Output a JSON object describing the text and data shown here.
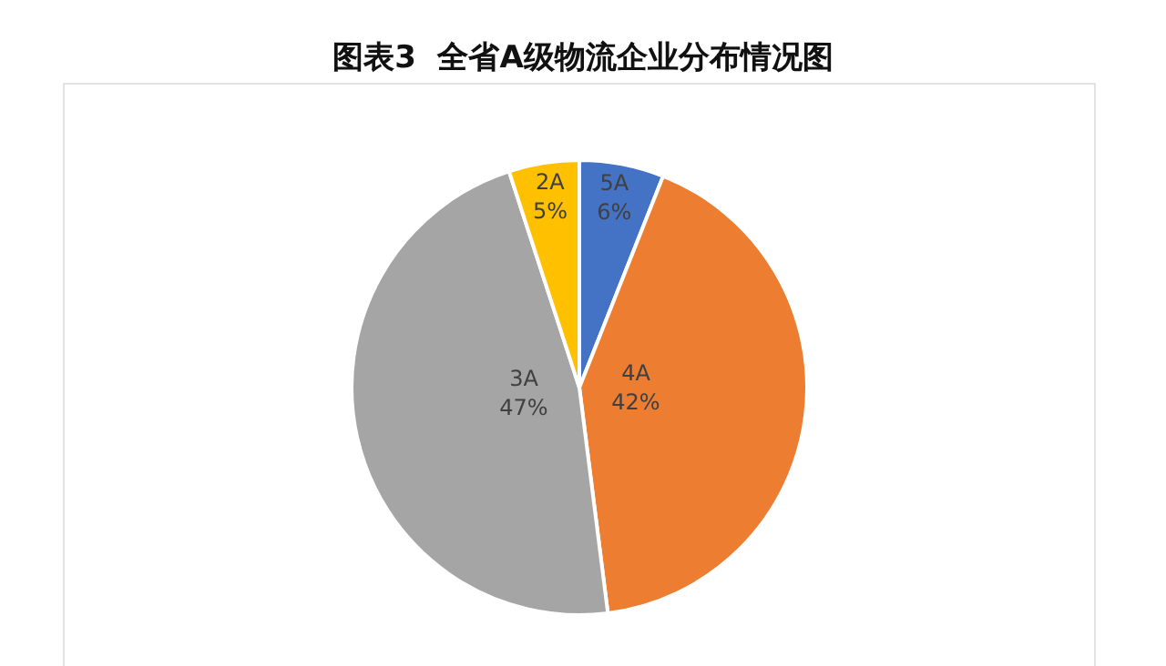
{
  "chart_data": {
    "type": "pie",
    "title": "图表3  全省A级物流企业分布情况图",
    "categories": [
      "5A",
      "4A",
      "3A",
      "2A"
    ],
    "values": [
      6,
      42,
      47,
      5
    ],
    "colors": [
      "#4472c4",
      "#ed7d31",
      "#a5a5a5",
      "#ffc000"
    ],
    "value_labels": [
      "6%",
      "42%",
      "47%",
      "5%"
    ],
    "legend": false
  }
}
